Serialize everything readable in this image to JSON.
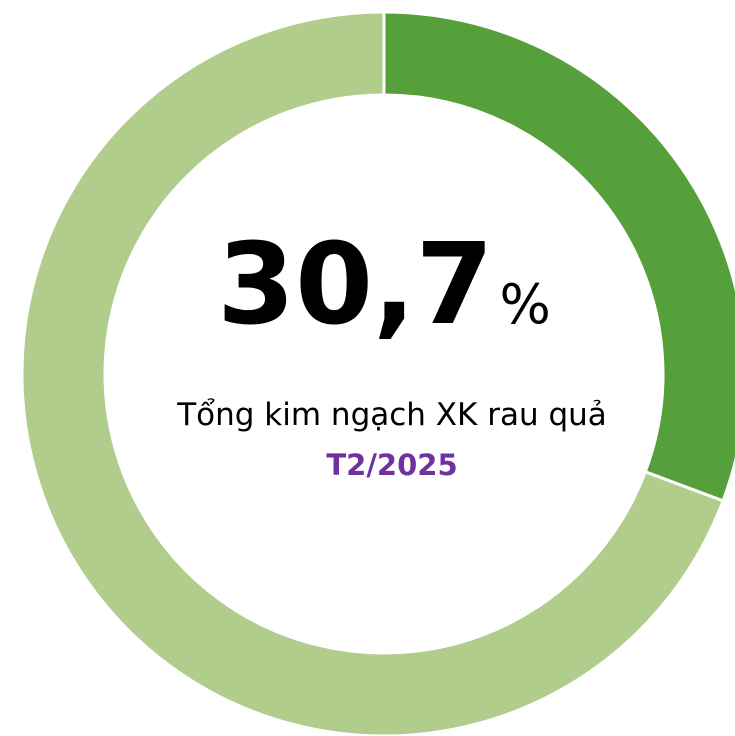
{
  "chart_data": {
    "type": "donut",
    "values": [
      30.7,
      69.3
    ],
    "value_labels": [
      "30,7",
      null
    ],
    "unit": "%",
    "colors": [
      "#56a03b",
      "#b0cd8c"
    ],
    "caption": "Tổng kim ngạch XK rau quả",
    "period": "T2/2025"
  }
}
